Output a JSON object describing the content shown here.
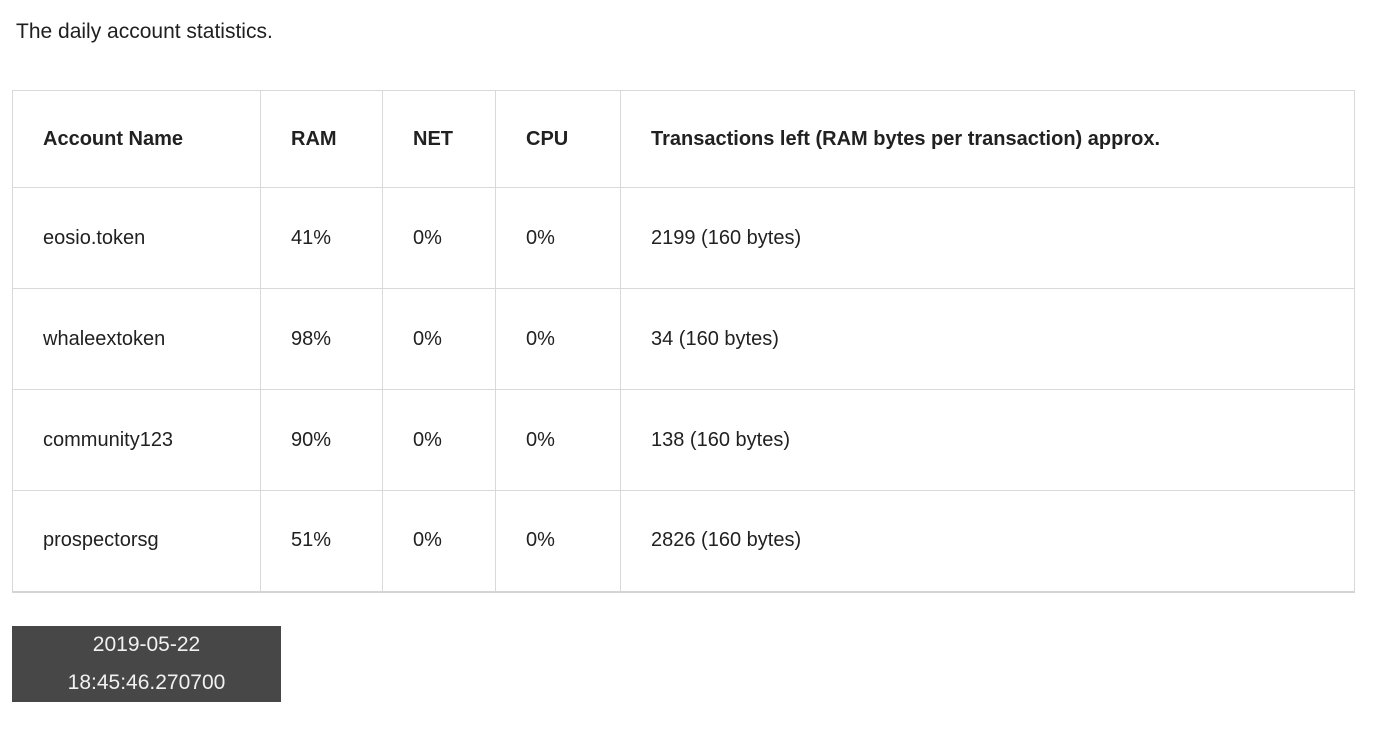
{
  "page": {
    "title": "The daily account statistics."
  },
  "table": {
    "columns": [
      "Account Name",
      "RAM",
      "NET",
      "CPU",
      "Transactions left (RAM bytes per transaction) approx."
    ],
    "rows": [
      {
        "account": "eosio.token",
        "ram": "41%",
        "net": "0%",
        "cpu": "0%",
        "tx_left": "2199 (160 bytes)"
      },
      {
        "account": "whaleextoken",
        "ram": "98%",
        "net": "0%",
        "cpu": "0%",
        "tx_left": "34 (160 bytes)"
      },
      {
        "account": "community123",
        "ram": "90%",
        "net": "0%",
        "cpu": "0%",
        "tx_left": "138 (160 bytes)"
      },
      {
        "account": "prospectorsg",
        "ram": "51%",
        "net": "0%",
        "cpu": "0%",
        "tx_left": "2826 (160 bytes)"
      }
    ]
  },
  "timestamp": {
    "date": "2019-05-22",
    "time": "18:45:46.270700"
  },
  "colors": {
    "text": "#212121",
    "table_border": "#d9d9d9",
    "badge_background": "#474747",
    "badge_text": "#f1f1f1"
  }
}
